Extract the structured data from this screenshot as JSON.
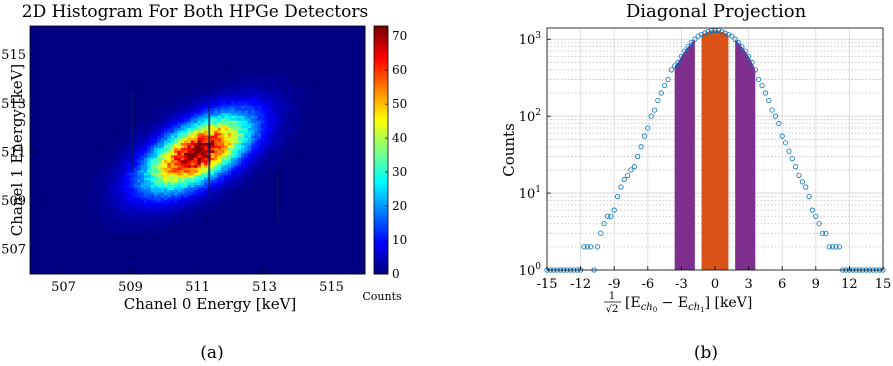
{
  "chart_data": [
    {
      "type": "heatmap",
      "title": "2D Histogram For Both HPGe Detectors",
      "xlabel": "Chanel 0 Energy [keV]",
      "ylabel": "Chanel 1 Energy [keV]",
      "xlim": [
        506,
        516
      ],
      "ylim": [
        506,
        516.2
      ],
      "xticks": [
        "507",
        "509",
        "511",
        "513",
        "515"
      ],
      "yticks": [
        "507",
        "509",
        "511",
        "513",
        "515"
      ],
      "colorbar": {
        "label": "Counts",
        "range": [
          0,
          73
        ],
        "ticks": [
          "0",
          "10",
          "20",
          "30",
          "40",
          "50",
          "60",
          "70"
        ]
      },
      "peak_center": [
        511,
        511
      ],
      "peak_max_counts": 73,
      "caption": "(a)"
    },
    {
      "type": "scatter",
      "title": "Diagonal Projection",
      "xlabel_prefix": "1",
      "xlabel_sqrt": "√2",
      "xlabel_expr": "[E",
      "xlabel_sub0": "ch",
      "xlabel_sub0i": "0",
      "xlabel_minus": " − E",
      "xlabel_sub1": "ch",
      "xlabel_sub1i": "1",
      "xlabel_unit": "] [keV]",
      "ylabel": "Counts",
      "xlim": [
        -15,
        15
      ],
      "ylim": [
        1,
        1400
      ],
      "yscale": "log",
      "xticks": [
        "-15",
        "-12",
        "-9",
        "-6",
        "-3",
        "0",
        "3",
        "6",
        "9",
        "12",
        "15"
      ],
      "yticks": [
        {
          "base": "10",
          "exp": "0"
        },
        {
          "base": "10",
          "exp": "1"
        },
        {
          "base": "10",
          "exp": "2"
        },
        {
          "base": "10",
          "exp": "3"
        }
      ],
      "grid": true,
      "series": [
        {
          "color": "#0072BD",
          "marker": "circle",
          "x": [
            -15.0,
            -14.7,
            -14.4,
            -14.1,
            -13.8,
            -13.5,
            -13.2,
            -12.9,
            -12.6,
            -12.3,
            -12.0,
            -11.7,
            -11.4,
            -11.1,
            -10.8,
            -10.5,
            -10.2,
            -9.9,
            -9.6,
            -9.3,
            -9.0,
            -8.7,
            -8.4,
            -8.1,
            -7.8,
            -7.5,
            -7.2,
            -6.9,
            -6.6,
            -6.3,
            -6.0,
            -5.7,
            -5.4,
            -5.1,
            -4.8,
            -4.5,
            -4.2,
            -3.9,
            -3.6,
            -3.3,
            -3.0,
            -2.7,
            -2.4,
            -2.1,
            -1.8,
            -1.5,
            -1.2,
            -0.9,
            -0.6,
            -0.3,
            0.0,
            0.3,
            0.6,
            0.9,
            1.2,
            1.5,
            1.8,
            2.1,
            2.4,
            2.7,
            3.0,
            3.3,
            3.6,
            3.9,
            4.2,
            4.5,
            4.8,
            5.1,
            5.4,
            5.7,
            6.0,
            6.3,
            6.6,
            6.9,
            7.2,
            7.5,
            7.8,
            8.1,
            8.4,
            8.7,
            9.0,
            9.3,
            9.6,
            9.9,
            10.2,
            10.5,
            10.8,
            11.1,
            11.4,
            11.7,
            12.0,
            12.3,
            12.6,
            12.9,
            13.2,
            13.5,
            13.8,
            14.1,
            14.4,
            14.7,
            15.0
          ],
          "y": [
            1,
            1,
            1,
            1,
            1,
            1,
            1,
            1,
            1,
            1,
            1,
            2,
            2,
            2,
            1,
            2,
            3,
            4,
            5,
            5,
            6,
            9,
            12,
            15,
            17,
            20,
            22,
            30,
            40,
            55,
            70,
            100,
            120,
            160,
            200,
            250,
            300,
            400,
            450,
            500,
            600,
            700,
            800,
            900,
            1000,
            1100,
            1150,
            1200,
            1250,
            1300,
            1300,
            1300,
            1250,
            1200,
            1150,
            1100,
            1000,
            900,
            800,
            700,
            600,
            500,
            400,
            300,
            250,
            200,
            160,
            120,
            100,
            80,
            55,
            45,
            35,
            28,
            22,
            17,
            14,
            12,
            9,
            6,
            5,
            4,
            3,
            3,
            2,
            2,
            2,
            2,
            1,
            1,
            1,
            1,
            1,
            1,
            1,
            1,
            1,
            1,
            1,
            1,
            1
          ]
        }
      ],
      "fill_regions": [
        {
          "range": [
            -3.6,
            -1.8
          ],
          "color": "#7E2F8E"
        },
        {
          "range": [
            -1.2,
            1.2
          ],
          "color": "#D95319"
        },
        {
          "range": [
            1.8,
            3.6
          ],
          "color": "#7E2F8E"
        }
      ],
      "caption": "(b)"
    }
  ]
}
